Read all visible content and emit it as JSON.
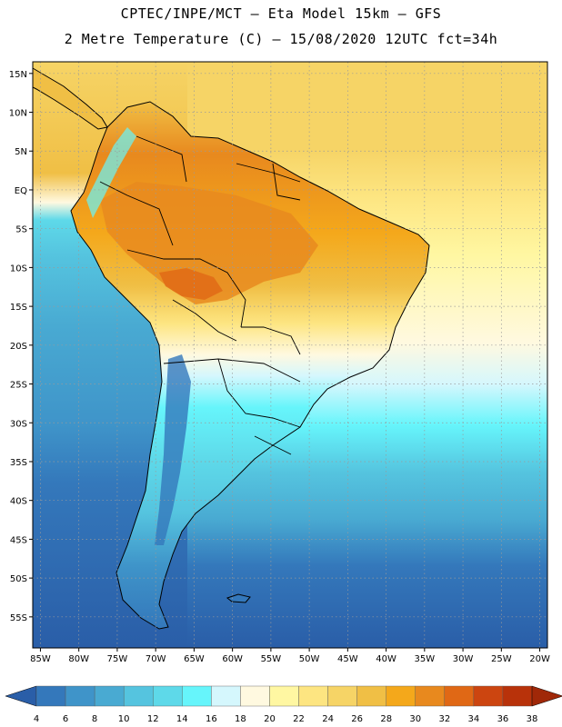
{
  "title_line1": "CPTEC/INPE/MCT –  Eta Model 15km – GFS",
  "title_line2": "2 Metre Temperature (C) – 15/08/2020 12UTC fct=34h",
  "lat_ticks": [
    "15N",
    "10N",
    "5N",
    "EQ",
    "5S",
    "10S",
    "15S",
    "20S",
    "25S",
    "30S",
    "35S",
    "40S",
    "45S",
    "50S",
    "55S"
  ],
  "lon_ticks": [
    "85W",
    "80W",
    "75W",
    "70W",
    "65W",
    "60W",
    "55W",
    "50W",
    "45W",
    "40W",
    "35W",
    "30W",
    "25W",
    "20W"
  ],
  "colorbar": {
    "labels": [
      "4",
      "6",
      "8",
      "10",
      "12",
      "14",
      "16",
      "18",
      "20",
      "22",
      "24",
      "26",
      "28",
      "30",
      "32",
      "34",
      "36",
      "38"
    ],
    "colors": [
      "#2a5ea8",
      "#3478bb",
      "#3f94c9",
      "#49aad2",
      "#55c4df",
      "#5ed9e9",
      "#66f5fb",
      "#d5f7fd",
      "#fff9e0",
      "#fff7a2",
      "#fde581",
      "#f6d466",
      "#f0bf45",
      "#f4a81b",
      "#e8891e",
      "#e06815",
      "#cc4510",
      "#b8320a",
      "#a02808"
    ]
  },
  "colors": {
    "ocean_south": "#2a5ea8",
    "ocean_mid": "#55c4df",
    "ocean_north": "#f6d466",
    "land_hot": "#e8891e",
    "coast": "#000000",
    "grid": "#9a9a9a"
  }
}
